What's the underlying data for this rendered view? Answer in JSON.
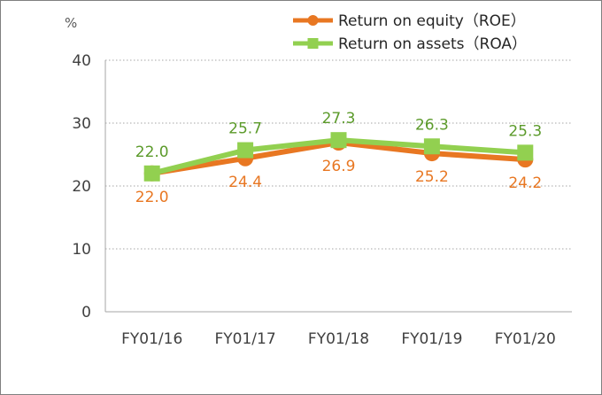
{
  "chart_data": {
    "type": "line",
    "categories": [
      "FY01/16",
      "FY01/17",
      "FY01/18",
      "FY01/19",
      "FY01/20"
    ],
    "series": [
      {
        "name": "Return on equity（ROE）",
        "values": [
          22.0,
          24.4,
          26.9,
          25.2,
          24.2
        ],
        "color": "#e87722",
        "marker": "circle"
      },
      {
        "name": "Return on assets（ROA）",
        "values": [
          22.0,
          25.7,
          27.3,
          26.3,
          25.3
        ],
        "color": "#92d050",
        "marker": "square"
      }
    ],
    "ylabel": "%",
    "ylim": [
      0,
      40
    ],
    "yticks": [
      0,
      10,
      20,
      30,
      40
    ],
    "grid": true,
    "legend_position": "top-right",
    "data_labels": true
  }
}
